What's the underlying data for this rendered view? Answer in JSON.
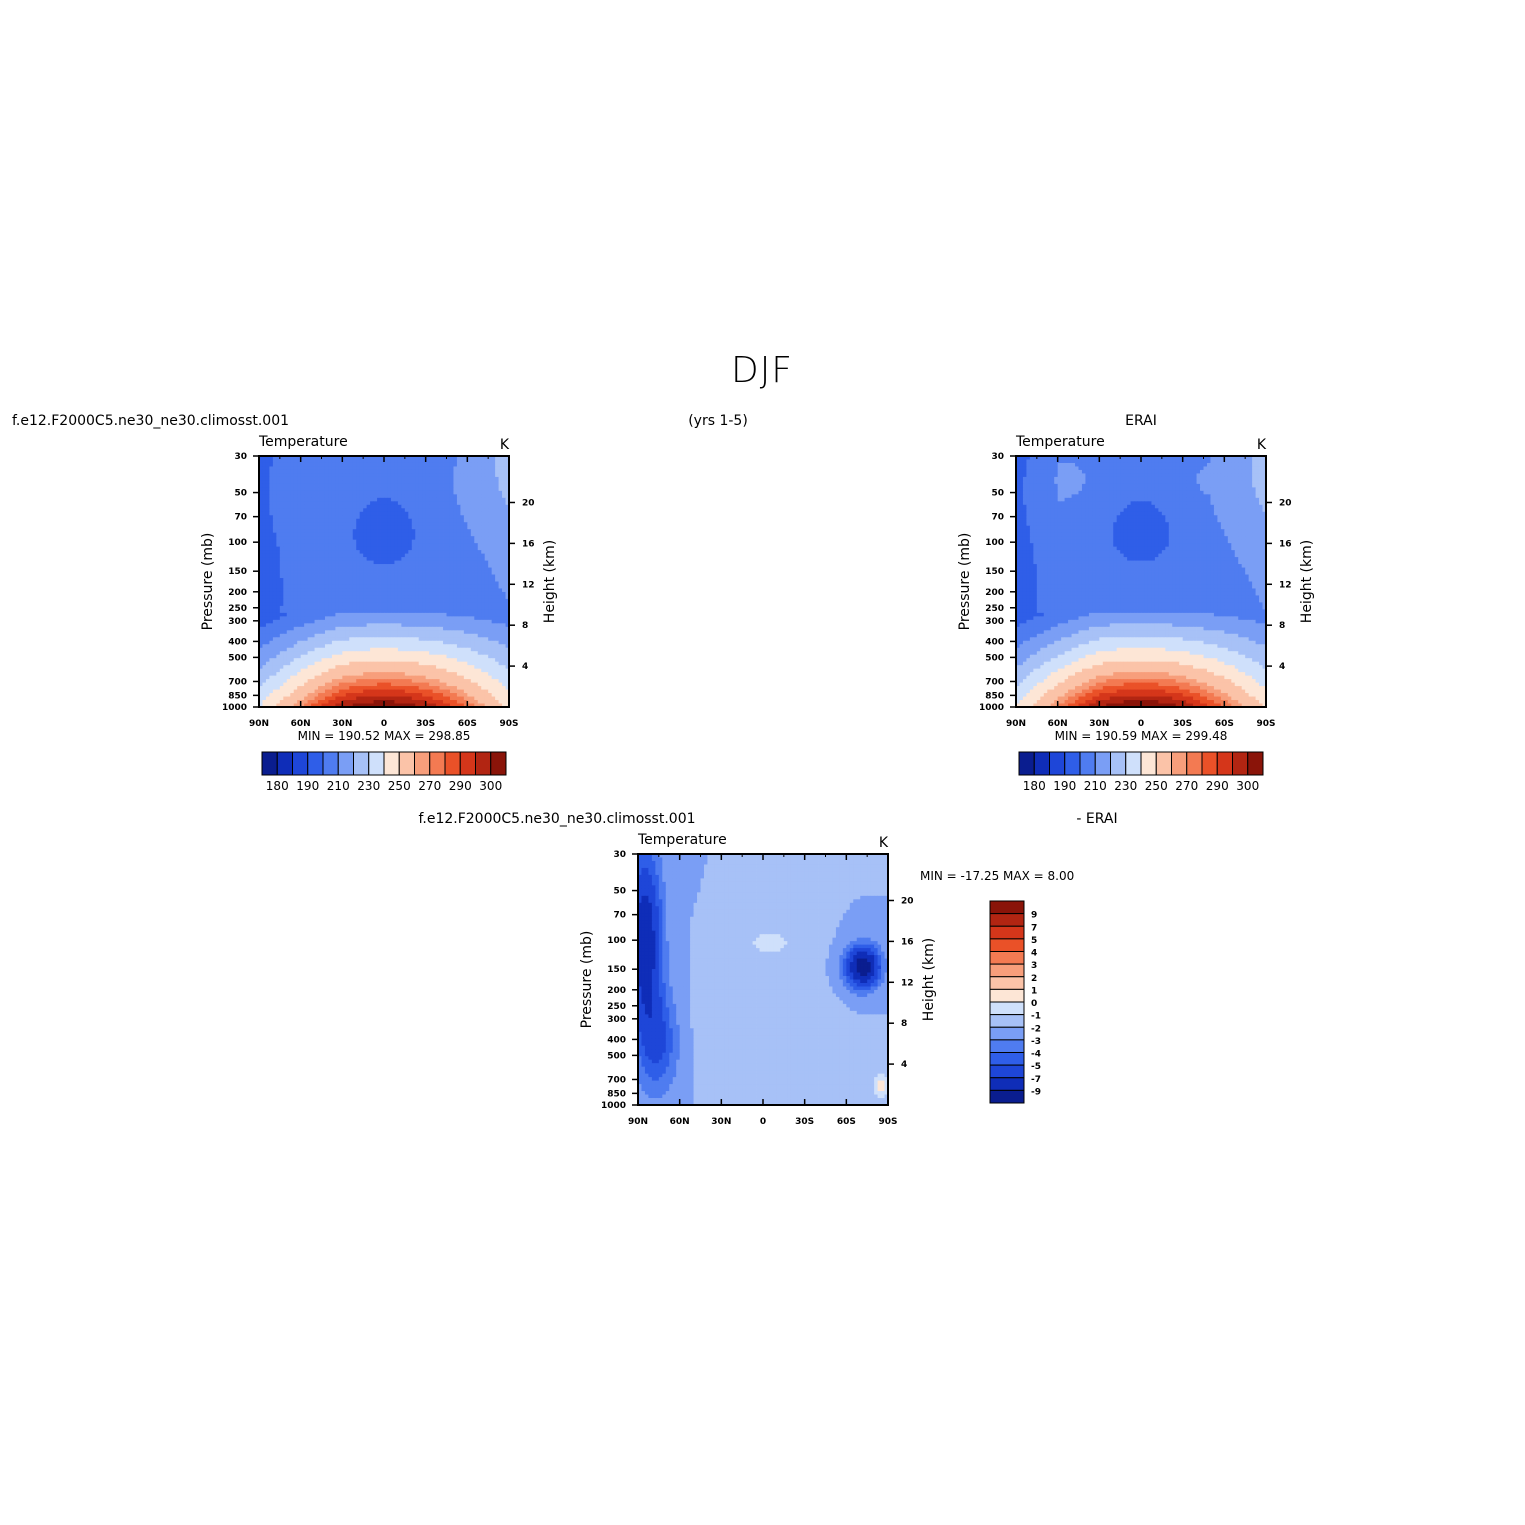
{
  "figure": {
    "title": "DJF",
    "case_label": "f.e12.F2000C5.ne30_ne30.climosst.001",
    "years": "(yrs  1-5)",
    "obs_label": "ERAI",
    "diff_case_label": "f.e12.F2000C5.ne30_ne30.climosst.001",
    "diff_obs_label": "- ERAI"
  },
  "chart_data": [
    {
      "type": "heatmap",
      "id": "model",
      "title": "Temperature",
      "units": "K",
      "ylabel_left": "Pressure (mb)",
      "ylabel_right": "Height (km)",
      "x_ticks": [
        "90N",
        "60N",
        "30N",
        "0",
        "30S",
        "60S",
        "90S"
      ],
      "x_values": [
        90,
        60,
        30,
        0,
        -30,
        -60,
        -90
      ],
      "pressure_ticks": [
        30,
        50,
        70,
        100,
        150,
        200,
        250,
        300,
        400,
        500,
        700,
        850,
        1000
      ],
      "height_ticks": [
        4,
        8,
        12,
        16,
        20
      ],
      "min_text": "MIN = 190.52   MAX = 298.85",
      "min": 190.52,
      "max": 298.85,
      "colorbar_labels": [
        "180",
        "190",
        "210",
        "230",
        "250",
        "270",
        "290",
        "300"
      ],
      "colors": [
        "#0a1d8f",
        "#0f2db8",
        "#1e46d8",
        "#2f5ee8",
        "#4f7cf0",
        "#7a9ef5",
        "#a7c1f7",
        "#cfe0fb",
        "#fde6d6",
        "#fbc3a8",
        "#f79e7b",
        "#f37a52",
        "#ea5128",
        "#d5361a",
        "#b22512",
        "#8a1409"
      ]
    },
    {
      "type": "heatmap",
      "id": "obs",
      "title": "Temperature",
      "units": "K",
      "ylabel_left": "Pressure (mb)",
      "ylabel_right": "Height (km)",
      "x_ticks": [
        "90N",
        "60N",
        "30N",
        "0",
        "30S",
        "60S",
        "90S"
      ],
      "x_values": [
        90,
        60,
        30,
        0,
        -30,
        -60,
        -90
      ],
      "pressure_ticks": [
        30,
        50,
        70,
        100,
        150,
        200,
        250,
        300,
        400,
        500,
        700,
        850,
        1000
      ],
      "height_ticks": [
        4,
        8,
        12,
        16,
        20
      ],
      "min_text": "MIN = 190.59   MAX = 299.48",
      "min": 190.59,
      "max": 299.48,
      "colorbar_labels": [
        "180",
        "190",
        "210",
        "230",
        "250",
        "270",
        "290",
        "300"
      ],
      "colors": [
        "#0a1d8f",
        "#0f2db8",
        "#1e46d8",
        "#2f5ee8",
        "#4f7cf0",
        "#7a9ef5",
        "#a7c1f7",
        "#cfe0fb",
        "#fde6d6",
        "#fbc3a8",
        "#f79e7b",
        "#f37a52",
        "#ea5128",
        "#d5361a",
        "#b22512",
        "#8a1409"
      ]
    },
    {
      "type": "heatmap",
      "id": "diff",
      "title": "Temperature",
      "units": "K",
      "ylabel_left": "Pressure (mb)",
      "ylabel_right": "Height (km)",
      "x_ticks": [
        "90N",
        "60N",
        "30N",
        "0",
        "30S",
        "60S",
        "90S"
      ],
      "x_values": [
        90,
        60,
        30,
        0,
        -30,
        -60,
        -90
      ],
      "pressure_ticks": [
        30,
        50,
        70,
        100,
        150,
        200,
        250,
        300,
        400,
        500,
        700,
        850,
        1000
      ],
      "height_ticks": [
        4,
        8,
        12,
        16,
        20
      ],
      "min_text": "MIN = -17.25   MAX =    8.00",
      "min": -17.25,
      "max": 8.0,
      "colorbar_labels": [
        "9",
        "7",
        "5",
        "4",
        "3",
        "2",
        "1",
        "0",
        "-1",
        "-2",
        "-3",
        "-4",
        "-5",
        "-7",
        "-9"
      ],
      "colors": [
        "#8a1409",
        "#b22512",
        "#d5361a",
        "#ea5128",
        "#f37a52",
        "#f79e7b",
        "#fbc3a8",
        "#fde6d6",
        "#cfe0fb",
        "#a7c1f7",
        "#7a9ef5",
        "#4f7cf0",
        "#2f5ee8",
        "#1e46d8",
        "#0f2db8",
        "#0a1d8f"
      ]
    }
  ]
}
